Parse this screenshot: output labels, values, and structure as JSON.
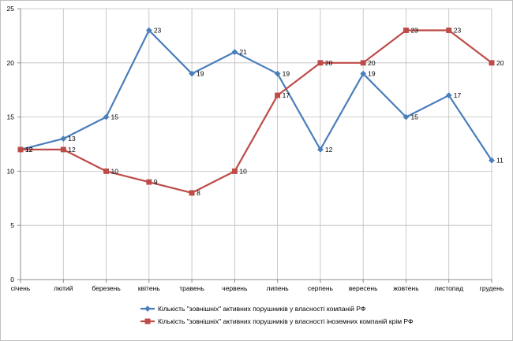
{
  "chart_data": {
    "type": "line",
    "categories": [
      "січень",
      "лютий",
      "березень",
      "квітень",
      "травень",
      "червень",
      "липень",
      "серпень",
      "вересень",
      "жовтень",
      "листопад",
      "грудень"
    ],
    "series": [
      {
        "name": "Кількість \"зовнішніх\" активних порушників у власності компаній РФ",
        "color": "#4a7ebb",
        "marker": "diamond",
        "values": [
          12,
          13,
          15,
          23,
          19,
          21,
          19,
          12,
          19,
          15,
          17,
          11
        ]
      },
      {
        "name": "Кількість \"зовнішніх\" активних порушників у власності іноземних компаній крім РФ",
        "color": "#be4b48",
        "marker": "square",
        "values": [
          12,
          12,
          10,
          9,
          8,
          10,
          17,
          20,
          20,
          23,
          23,
          20
        ]
      }
    ],
    "yticks": [
      "0",
      "5",
      "10",
      "15",
      "20",
      "25"
    ],
    "ylim": [
      0,
      25
    ],
    "grid": true,
    "data_labels": true,
    "legend_position": "bottom",
    "title": "",
    "xlabel": "",
    "ylabel": ""
  }
}
